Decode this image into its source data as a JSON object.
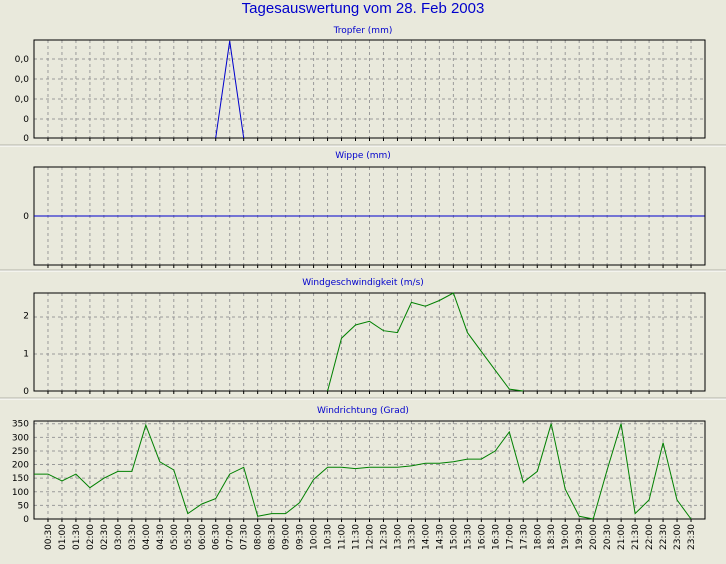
{
  "page_title": "Tagesauswertung vom 28. Feb 2003",
  "x_tick_labels": [
    "00:30",
    "01:00",
    "01:30",
    "02:00",
    "02:30",
    "03:00",
    "03:30",
    "04:00",
    "04:30",
    "05:00",
    "05:30",
    "06:00",
    "06:30",
    "07:00",
    "07:30",
    "08:00",
    "08:30",
    "09:00",
    "09:30",
    "10:00",
    "10:30",
    "11:00",
    "11:30",
    "12:00",
    "12:30",
    "13:00",
    "13:30",
    "14:00",
    "14:30",
    "15:00",
    "15:30",
    "16:00",
    "16:30",
    "17:00",
    "17:30",
    "18:00",
    "18:30",
    "19:00",
    "19:30",
    "20:00",
    "20:30",
    "21:00",
    "21:30",
    "22:00",
    "22:30",
    "23:00",
    "23:30"
  ],
  "colors": {
    "background": "#e9e9dc",
    "plot_background": "#e9e9dc",
    "title": "#0000cc",
    "rain_line": "#0000cc",
    "wind_line": "#008000",
    "grid": "#9a9a9a"
  },
  "chart_data": [
    {
      "type": "line",
      "title": "Tropfer (mm)",
      "x": [
        "00:00",
        "00:30",
        "01:00",
        "01:30",
        "02:00",
        "02:30",
        "03:00",
        "03:30",
        "04:00",
        "04:30",
        "05:00",
        "05:30",
        "06:00",
        "06:30",
        "07:00",
        "07:30",
        "08:00",
        "08:30",
        "09:00",
        "09:30",
        "10:00",
        "10:30",
        "11:00",
        "11:30",
        "12:00",
        "12:30",
        "13:00",
        "13:30",
        "14:00",
        "14:30",
        "15:00",
        "15:30",
        "16:00",
        "16:30",
        "17:00",
        "17:30",
        "18:00",
        "18:30",
        "19:00",
        "19:30",
        "20:00",
        "20:30",
        "21:00",
        "21:30",
        "22:00",
        "22:30",
        "23:00",
        "23:30"
      ],
      "y_tick_labels": [
        "0,0",
        "0,0",
        "0,0",
        "0",
        "0"
      ],
      "ylim": [
        0,
        1
      ],
      "series": [
        {
          "color": "#0000cc",
          "points": [
            [
              "06:30",
              0
            ],
            [
              "07:00",
              1
            ],
            [
              "07:30",
              0
            ]
          ]
        }
      ],
      "grid": true
    },
    {
      "type": "line",
      "title": "Wippe (mm)",
      "y_tick_labels": [
        "0"
      ],
      "ylim": [
        -1,
        1
      ],
      "series": [
        {
          "color": "#0000cc",
          "points": [
            [
              "00:00",
              0
            ],
            [
              "23:59",
              0
            ]
          ]
        }
      ],
      "grid": true
    },
    {
      "type": "line",
      "title": "Windgeschwindigkeit (m/s)",
      "y_tick_labels": [
        "0",
        "1",
        "2"
      ],
      "ylim": [
        0,
        2.6
      ],
      "series": [
        {
          "color": "#008000",
          "points": [
            [
              "10:30",
              0
            ],
            [
              "11:00",
              1.4
            ],
            [
              "11:30",
              1.75
            ],
            [
              "12:00",
              1.85
            ],
            [
              "12:30",
              1.6
            ],
            [
              "13:00",
              1.55
            ],
            [
              "13:30",
              2.35
            ],
            [
              "14:00",
              2.25
            ],
            [
              "14:30",
              2.4
            ],
            [
              "15:00",
              2.6
            ],
            [
              "15:30",
              1.55
            ],
            [
              "16:00",
              1.05
            ],
            [
              "16:30",
              0.55
            ],
            [
              "17:00",
              0.05
            ],
            [
              "17:30",
              0
            ]
          ]
        }
      ],
      "grid": true
    },
    {
      "type": "line",
      "title": "Windrichtung (Grad)",
      "y_tick_labels": [
        "0",
        "50",
        "100",
        "150",
        "200",
        "250",
        "300",
        "350"
      ],
      "ylim": [
        0,
        360
      ],
      "series": [
        {
          "color": "#008000",
          "points": [
            [
              "00:00",
              165
            ],
            [
              "00:30",
              165
            ],
            [
              "01:00",
              140
            ],
            [
              "01:30",
              165
            ],
            [
              "02:00",
              115
            ],
            [
              "02:30",
              150
            ],
            [
              "03:00",
              175
            ],
            [
              "03:30",
              175
            ],
            [
              "04:00",
              345
            ],
            [
              "04:30",
              210
            ],
            [
              "05:00",
              180
            ],
            [
              "05:30",
              20
            ],
            [
              "06:00",
              55
            ],
            [
              "06:30",
              75
            ],
            [
              "07:00",
              165
            ],
            [
              "07:30",
              190
            ],
            [
              "08:00",
              10
            ],
            [
              "08:30",
              20
            ],
            [
              "09:00",
              20
            ],
            [
              "09:30",
              60
            ],
            [
              "10:00",
              145
            ],
            [
              "10:30",
              190
            ],
            [
              "11:00",
              190
            ],
            [
              "11:30",
              185
            ],
            [
              "12:00",
              190
            ],
            [
              "12:30",
              190
            ],
            [
              "13:00",
              190
            ],
            [
              "13:30",
              195
            ],
            [
              "14:00",
              205
            ],
            [
              "14:30",
              205
            ],
            [
              "15:00",
              210
            ],
            [
              "15:30",
              220
            ],
            [
              "16:00",
              220
            ],
            [
              "16:30",
              250
            ],
            [
              "17:00",
              320
            ],
            [
              "17:30",
              135
            ],
            [
              "18:00",
              175
            ],
            [
              "18:30",
              350
            ],
            [
              "19:00",
              110
            ],
            [
              "19:30",
              10
            ],
            [
              "20:00",
              0
            ],
            [
              "20:30",
              180
            ],
            [
              "21:00",
              350
            ],
            [
              "21:30",
              20
            ],
            [
              "22:00",
              70
            ],
            [
              "22:30",
              280
            ],
            [
              "23:00",
              70
            ],
            [
              "23:30",
              0
            ]
          ]
        }
      ],
      "grid": true
    }
  ]
}
